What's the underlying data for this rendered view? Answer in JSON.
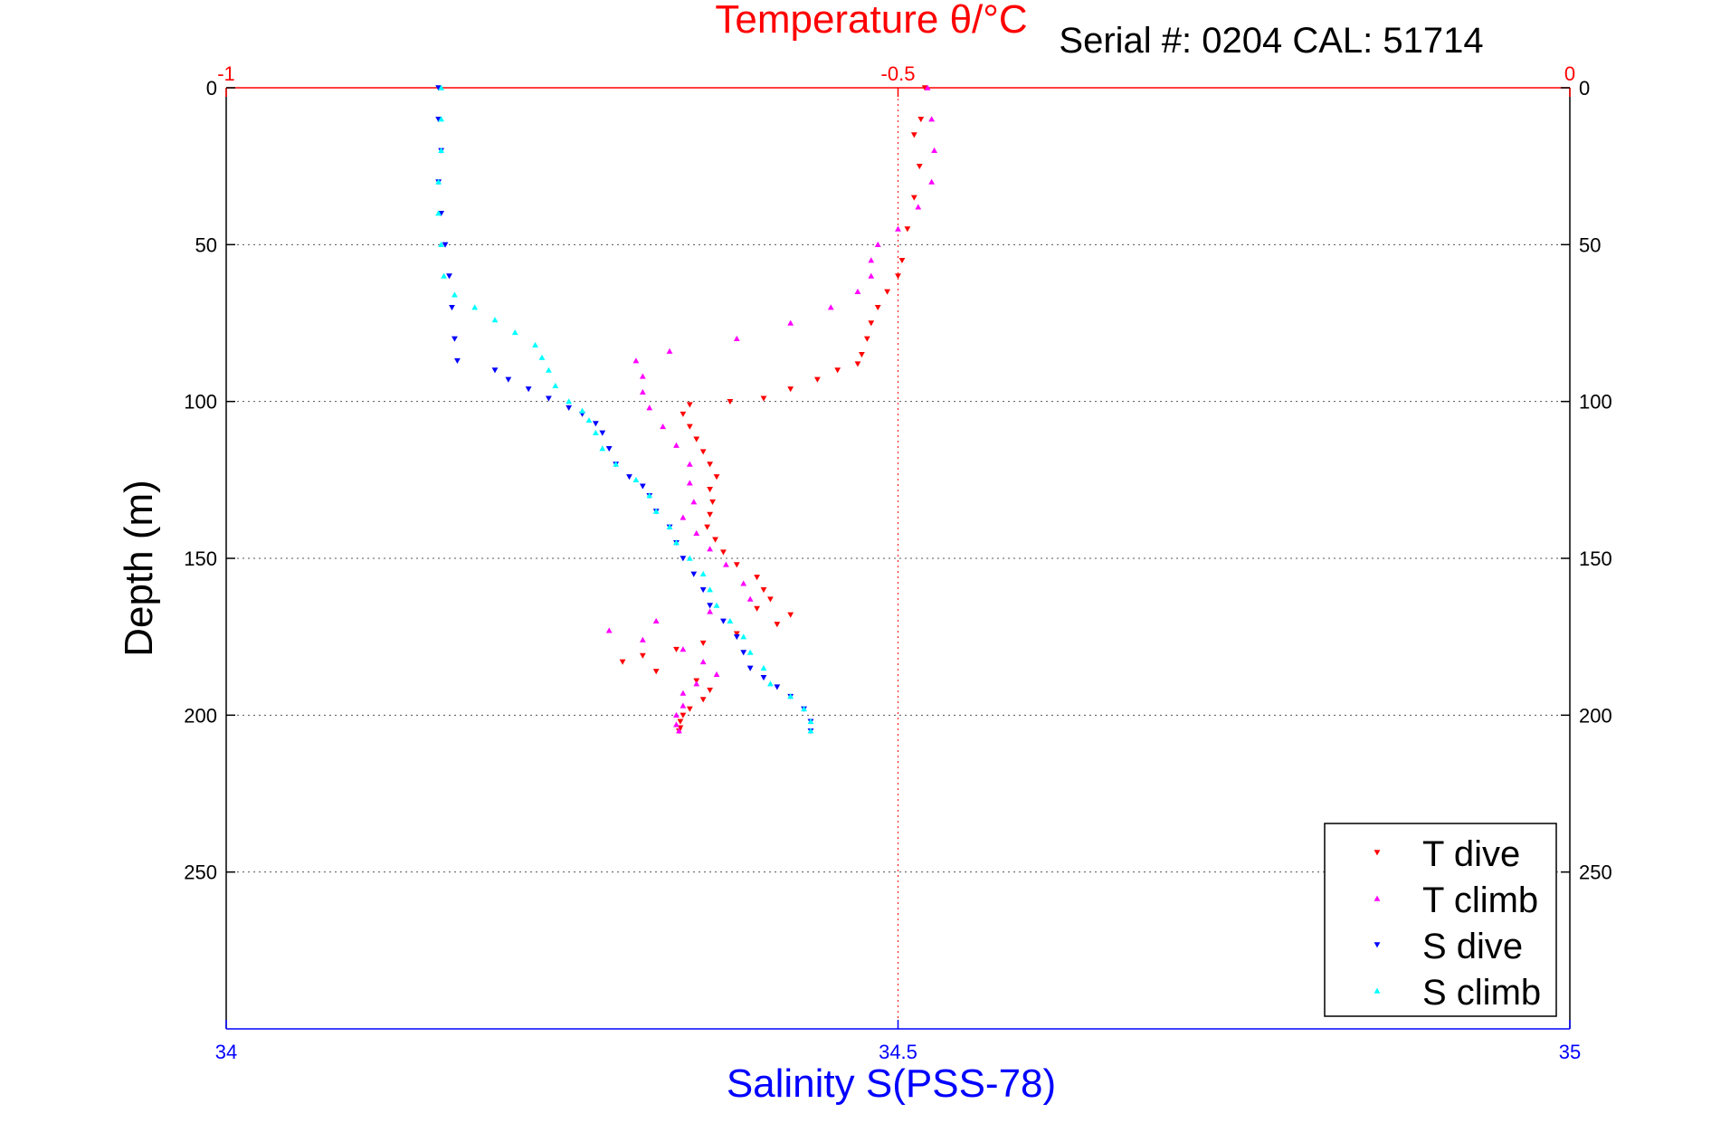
{
  "chart_data": {
    "type": "scatter",
    "title": "Temperature θ/°C",
    "subtitle": "Serial #: 0204  CAL: 51714",
    "ylabel": "Depth (m)",
    "xlabel": "Salinity S(PSS-78)",
    "top_axis": {
      "label": "Temperature θ/°C",
      "range": [
        -1,
        0
      ],
      "ticks": [
        "-1",
        "-0.5",
        "0"
      ],
      "tick_values": [
        -1,
        -0.5,
        0
      ]
    },
    "bottom_axis": {
      "label": "Salinity S(PSS-78)",
      "range": [
        34,
        35
      ],
      "ticks": [
        "34",
        "34.5",
        "35"
      ],
      "tick_values": [
        34,
        34.5,
        35
      ]
    },
    "y_axis": {
      "range": [
        0,
        300
      ],
      "reversed": true,
      "ticks": [
        "0",
        "50",
        "100",
        "150",
        "200",
        "250"
      ],
      "tick_values": [
        0,
        50,
        100,
        150,
        200,
        250
      ]
    },
    "grid": true,
    "legend_position": "bottom-right",
    "colors": {
      "temperature_axis": "#ff0000",
      "salinity_axis": "#0000ff",
      "grid": "#555555"
    },
    "series": [
      {
        "name": "T dive",
        "axis": "temperature",
        "color": "#ff0000",
        "marker": "triangle-down",
        "points": [
          [
            -0.48,
            0
          ],
          [
            -0.483,
            10
          ],
          [
            -0.488,
            15
          ],
          [
            -0.484,
            25
          ],
          [
            -0.488,
            35
          ],
          [
            -0.493,
            45
          ],
          [
            -0.497,
            55
          ],
          [
            -0.5,
            60
          ],
          [
            -0.508,
            65
          ],
          [
            -0.515,
            70
          ],
          [
            -0.52,
            75
          ],
          [
            -0.523,
            80
          ],
          [
            -0.527,
            85
          ],
          [
            -0.53,
            88
          ],
          [
            -0.545,
            90
          ],
          [
            -0.56,
            93
          ],
          [
            -0.58,
            96
          ],
          [
            -0.6,
            99
          ],
          [
            -0.625,
            100
          ],
          [
            -0.655,
            101
          ],
          [
            -0.66,
            104
          ],
          [
            -0.655,
            108
          ],
          [
            -0.65,
            112
          ],
          [
            -0.645,
            116
          ],
          [
            -0.64,
            120
          ],
          [
            -0.635,
            124
          ],
          [
            -0.64,
            128
          ],
          [
            -0.638,
            132
          ],
          [
            -0.64,
            136
          ],
          [
            -0.642,
            140
          ],
          [
            -0.636,
            144
          ],
          [
            -0.63,
            148
          ],
          [
            -0.62,
            152
          ],
          [
            -0.605,
            156
          ],
          [
            -0.6,
            160
          ],
          [
            -0.595,
            163
          ],
          [
            -0.605,
            166
          ],
          [
            -0.58,
            168
          ],
          [
            -0.59,
            171
          ],
          [
            -0.62,
            174
          ],
          [
            -0.645,
            177
          ],
          [
            -0.665,
            179
          ],
          [
            -0.69,
            181
          ],
          [
            -0.705,
            183
          ],
          [
            -0.68,
            186
          ],
          [
            -0.65,
            189
          ],
          [
            -0.64,
            192
          ],
          [
            -0.645,
            195
          ],
          [
            -0.655,
            198
          ],
          [
            -0.66,
            200
          ],
          [
            -0.662,
            202
          ],
          [
            -0.662,
            204
          ],
          [
            -0.663,
            205
          ]
        ]
      },
      {
        "name": "T climb",
        "axis": "temperature",
        "color": "#ff00ff",
        "marker": "triangle-up",
        "points": [
          [
            -0.478,
            0
          ],
          [
            -0.475,
            10
          ],
          [
            -0.473,
            20
          ],
          [
            -0.475,
            30
          ],
          [
            -0.485,
            38
          ],
          [
            -0.5,
            45
          ],
          [
            -0.515,
            50
          ],
          [
            -0.52,
            55
          ],
          [
            -0.52,
            60
          ],
          [
            -0.53,
            65
          ],
          [
            -0.55,
            70
          ],
          [
            -0.58,
            75
          ],
          [
            -0.62,
            80
          ],
          [
            -0.67,
            84
          ],
          [
            -0.695,
            87
          ],
          [
            -0.69,
            92
          ],
          [
            -0.69,
            97
          ],
          [
            -0.685,
            102
          ],
          [
            -0.675,
            108
          ],
          [
            -0.665,
            114
          ],
          [
            -0.655,
            120
          ],
          [
            -0.655,
            126
          ],
          [
            -0.652,
            132
          ],
          [
            -0.66,
            137
          ],
          [
            -0.65,
            142
          ],
          [
            -0.64,
            147
          ],
          [
            -0.628,
            152
          ],
          [
            -0.615,
            158
          ],
          [
            -0.61,
            163
          ],
          [
            -0.64,
            167
          ],
          [
            -0.68,
            170
          ],
          [
            -0.715,
            173
          ],
          [
            -0.69,
            176
          ],
          [
            -0.66,
            179
          ],
          [
            -0.645,
            183
          ],
          [
            -0.635,
            187
          ],
          [
            -0.65,
            190
          ],
          [
            -0.66,
            193
          ],
          [
            -0.66,
            197
          ],
          [
            -0.665,
            200
          ],
          [
            -0.665,
            203
          ],
          [
            -0.663,
            205
          ]
        ]
      },
      {
        "name": "S dive",
        "axis": "salinity",
        "color": "#0000ff",
        "marker": "triangle-down",
        "points": [
          [
            34.158,
            0
          ],
          [
            34.158,
            10
          ],
          [
            34.16,
            20
          ],
          [
            34.158,
            30
          ],
          [
            34.16,
            40
          ],
          [
            34.163,
            50
          ],
          [
            34.166,
            60
          ],
          [
            34.168,
            70
          ],
          [
            34.17,
            80
          ],
          [
            34.172,
            87
          ],
          [
            34.2,
            90
          ],
          [
            34.21,
            93
          ],
          [
            34.225,
            96
          ],
          [
            34.24,
            99
          ],
          [
            34.255,
            102
          ],
          [
            34.265,
            104
          ],
          [
            34.275,
            107
          ],
          [
            34.28,
            110
          ],
          [
            34.285,
            115
          ],
          [
            34.29,
            120
          ],
          [
            34.3,
            124
          ],
          [
            34.31,
            127
          ],
          [
            34.315,
            130
          ],
          [
            34.32,
            135
          ],
          [
            34.33,
            140
          ],
          [
            34.335,
            145
          ],
          [
            34.34,
            150
          ],
          [
            34.348,
            155
          ],
          [
            34.355,
            160
          ],
          [
            34.36,
            165
          ],
          [
            34.37,
            170
          ],
          [
            34.38,
            175
          ],
          [
            34.385,
            180
          ],
          [
            34.39,
            185
          ],
          [
            34.4,
            188
          ],
          [
            34.41,
            191
          ],
          [
            34.42,
            194
          ],
          [
            34.43,
            198
          ],
          [
            34.435,
            202
          ],
          [
            34.435,
            205
          ]
        ]
      },
      {
        "name": "S climb",
        "axis": "salinity",
        "color": "#00ffff",
        "marker": "triangle-up",
        "points": [
          [
            34.16,
            0
          ],
          [
            34.16,
            10
          ],
          [
            34.16,
            20
          ],
          [
            34.158,
            30
          ],
          [
            34.158,
            40
          ],
          [
            34.16,
            50
          ],
          [
            34.162,
            60
          ],
          [
            34.17,
            66
          ],
          [
            34.185,
            70
          ],
          [
            34.2,
            74
          ],
          [
            34.215,
            78
          ],
          [
            34.23,
            82
          ],
          [
            34.235,
            86
          ],
          [
            34.24,
            90
          ],
          [
            34.245,
            95
          ],
          [
            34.255,
            100
          ],
          [
            34.265,
            103
          ],
          [
            34.27,
            106
          ],
          [
            34.275,
            110
          ],
          [
            34.28,
            115
          ],
          [
            34.29,
            120
          ],
          [
            34.305,
            125
          ],
          [
            34.315,
            130
          ],
          [
            34.32,
            135
          ],
          [
            34.33,
            140
          ],
          [
            34.335,
            145
          ],
          [
            34.345,
            150
          ],
          [
            34.355,
            155
          ],
          [
            34.36,
            160
          ],
          [
            34.365,
            165
          ],
          [
            34.375,
            170
          ],
          [
            34.385,
            175
          ],
          [
            34.39,
            180
          ],
          [
            34.4,
            185
          ],
          [
            34.405,
            190
          ],
          [
            34.42,
            194
          ],
          [
            34.43,
            198
          ],
          [
            34.435,
            202
          ],
          [
            34.435,
            205
          ]
        ]
      }
    ]
  }
}
